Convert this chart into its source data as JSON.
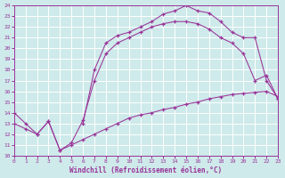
{
  "xlabel": "Windchill (Refroidissement éolien,°C)",
  "xlim": [
    0,
    23
  ],
  "ylim": [
    10,
    24
  ],
  "xticks": [
    0,
    1,
    2,
    3,
    4,
    5,
    6,
    7,
    8,
    9,
    10,
    11,
    12,
    13,
    14,
    15,
    16,
    17,
    18,
    19,
    20,
    21,
    22,
    23
  ],
  "yticks": [
    10,
    11,
    12,
    13,
    14,
    15,
    16,
    17,
    18,
    19,
    20,
    21,
    22,
    23,
    24
  ],
  "bg_color": "#ceeaea",
  "line_color": "#993399",
  "grid_color": "#ffffff",
  "curve1": {
    "x": [
      6,
      7,
      8,
      9,
      10,
      11,
      12,
      13,
      14,
      15,
      16,
      17,
      18,
      19,
      20,
      21,
      22,
      23
    ],
    "y": [
      13.0,
      18.0,
      20.5,
      21.2,
      21.5,
      22.0,
      22.5,
      23.2,
      23.5,
      24.0,
      23.5,
      23.3,
      22.5,
      21.5,
      21.0,
      21.0,
      17.0,
      15.3
    ]
  },
  "curve2": {
    "x": [
      0,
      1,
      2,
      3,
      4,
      5,
      6,
      7,
      8,
      9,
      10,
      11,
      12,
      13,
      14,
      15,
      16,
      17,
      18,
      19,
      20,
      21,
      22,
      23
    ],
    "y": [
      14.0,
      13.0,
      12.0,
      13.2,
      10.5,
      11.2,
      13.3,
      17.0,
      19.5,
      20.5,
      21.0,
      21.5,
      22.0,
      22.3,
      22.5,
      22.5,
      22.3,
      21.8,
      21.0,
      20.5,
      19.5,
      17.0,
      17.5,
      15.3
    ]
  },
  "curve3": {
    "x": [
      0,
      1,
      2,
      3,
      4,
      5,
      6,
      7,
      8,
      9,
      10,
      11,
      12,
      13,
      14,
      15,
      16,
      17,
      18,
      19,
      20,
      21,
      22,
      23
    ],
    "y": [
      13.0,
      12.5,
      12.0,
      13.2,
      10.5,
      11.0,
      11.5,
      12.0,
      12.5,
      13.0,
      13.5,
      13.8,
      14.0,
      14.3,
      14.5,
      14.8,
      15.0,
      15.3,
      15.5,
      15.7,
      15.8,
      15.9,
      16.0,
      15.5
    ]
  }
}
